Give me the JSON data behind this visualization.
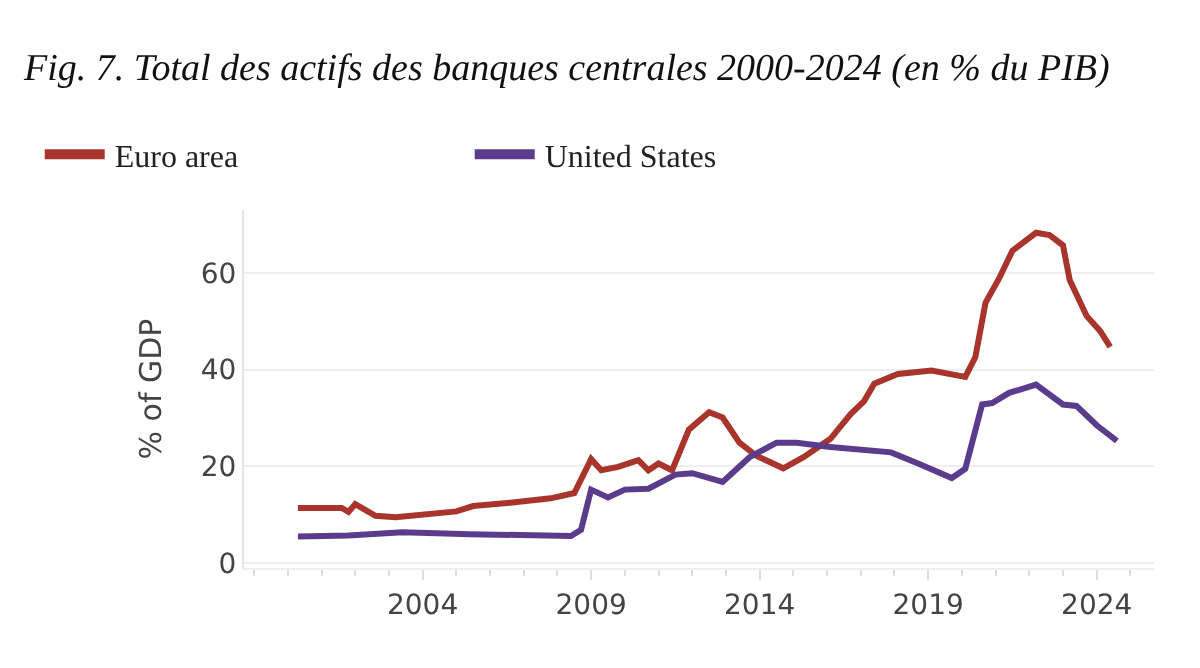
{
  "chart_data": {
    "type": "line",
    "title": "Fig. 7. Total des actifs des banques centrales 2000-2024 (en % du PIB)",
    "ylabel": "% of GDP",
    "xlim": [
      1998.7,
      2025.7
    ],
    "xticks": [
      2004,
      2009,
      2014,
      2019,
      2024
    ],
    "ylim": [
      -1,
      73
    ],
    "yticks": [
      0,
      20,
      40,
      60
    ],
    "grid": "y",
    "legend": "top left",
    "line_style": "solid",
    "marker": "none",
    "series": [
      {
        "name": "Euro area",
        "color": "#a8342c",
        "x": [
          2000.3,
          2001.6,
          2001.8,
          2002.0,
          2002.6,
          2003.2,
          2005.0,
          2005.5,
          2006.6,
          2007.8,
          2008.5,
          2009.0,
          2009.3,
          2009.8,
          2010.4,
          2010.7,
          2011.0,
          2011.4,
          2011.9,
          2012.5,
          2012.9,
          2013.4,
          2013.9,
          2014.7,
          2015.3,
          2016.1,
          2016.7,
          2017.1,
          2017.4,
          2018.1,
          2019.1,
          2020.1,
          2020.4,
          2020.7,
          2021.1,
          2021.5,
          2022.2,
          2022.6,
          2023.0,
          2023.2,
          2023.7,
          2024.1,
          2024.4
        ],
        "values": [
          11.4,
          11.4,
          10.6,
          12.2,
          9.8,
          9.5,
          10.7,
          11.8,
          12.5,
          13.4,
          14.5,
          21.5,
          19.2,
          19.9,
          21.3,
          19.2,
          20.6,
          19.2,
          27.6,
          31.2,
          30.1,
          24.9,
          22.2,
          19.6,
          21.9,
          25.7,
          30.8,
          33.5,
          37.1,
          39.1,
          39.8,
          38.5,
          42.6,
          53.8,
          58.8,
          64.6,
          68.3,
          67.8,
          65.7,
          58.5,
          51.1,
          48.0,
          44.7
        ]
      },
      {
        "name": "United States",
        "color": "#5b3b8c",
        "x": [
          2000.3,
          2001.8,
          2003.4,
          2005.4,
          2008.4,
          2008.7,
          2009.0,
          2009.5,
          2010.0,
          2010.7,
          2011.5,
          2012.0,
          2012.9,
          2013.7,
          2014.5,
          2015.1,
          2016.1,
          2017.9,
          2018.7,
          2019.7,
          2020.1,
          2020.6,
          2020.9,
          2021.4,
          2022.2,
          2023.0,
          2023.4,
          2024.0,
          2024.6
        ],
        "values": [
          5.5,
          5.7,
          6.4,
          6.0,
          5.6,
          6.9,
          15.2,
          13.6,
          15.2,
          15.4,
          18.3,
          18.6,
          16.8,
          21.9,
          24.9,
          24.9,
          24.0,
          22.9,
          20.6,
          17.6,
          19.5,
          32.8,
          33.1,
          35.2,
          36.9,
          32.8,
          32.5,
          28.5,
          25.3
        ]
      }
    ]
  }
}
